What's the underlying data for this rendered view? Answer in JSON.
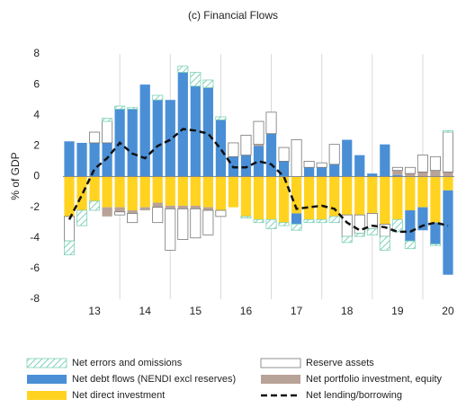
{
  "chart_data": {
    "type": "bar",
    "title": "(c) Financial Flows",
    "y_label": "% of GDP",
    "categories": [
      null,
      null,
      "13",
      null,
      null,
      null,
      "14",
      null,
      null,
      null,
      "15",
      null,
      null,
      null,
      "16",
      null,
      null,
      null,
      "17",
      null,
      null,
      null,
      "18",
      null,
      null,
      null,
      "19",
      null,
      null,
      null,
      "20"
    ],
    "ylim": [
      -8,
      8
    ],
    "yticks": [
      -8,
      -6,
      -4,
      -2,
      0,
      2,
      4,
      6,
      8
    ],
    "grid": false,
    "year_dividers": true,
    "series": [
      {
        "name": "Net direct investment",
        "color": "#ffd320",
        "values": [
          -2.6,
          -2.2,
          -1.6,
          -2.0,
          -2.0,
          -2.2,
          -2.0,
          -1.7,
          -1.9,
          -1.9,
          -1.9,
          -2.0,
          -2.2,
          -2.0,
          -2.6,
          -2.8,
          -2.8,
          -3.0,
          -2.4,
          -2.8,
          -2.8,
          -2.6,
          -2.5,
          -2.5,
          -2.4,
          -3.1,
          -2.8,
          -2.2,
          -2.0,
          -3.0,
          -0.9
        ]
      },
      {
        "name": "Net debt flows (NENDI excl reserves)",
        "color": "#4a8fd6",
        "values": [
          2.3,
          2.2,
          2.2,
          2.2,
          4.4,
          4.4,
          6.0,
          5.0,
          5.0,
          6.8,
          5.9,
          5.8,
          3.7,
          1.3,
          1.4,
          2.0,
          2.8,
          1.0,
          -0.7,
          0.6,
          0.6,
          0.8,
          2.4,
          1.4,
          0.2,
          2.1,
          0.1,
          -2.0,
          -1.5,
          -1.4,
          -5.5
        ]
      },
      {
        "name": "Net portfolio investment, equity",
        "color": "#b8a398",
        "values": [
          0,
          0,
          0,
          -0.6,
          -0.3,
          -0.2,
          -0.2,
          -0.3,
          -0.2,
          -0.2,
          -0.2,
          -0.2,
          0,
          0,
          0,
          0.1,
          0,
          0,
          0,
          0,
          0,
          0,
          0,
          0,
          0,
          0,
          0.3,
          0.2,
          0.3,
          0.4,
          0.3
        ]
      },
      {
        "name": "Reserve assets",
        "color": "#ffffff",
        "values": [
          -1.6,
          0,
          0.7,
          1.4,
          -0.2,
          -0.6,
          0,
          -1.0,
          -2.7,
          -2.0,
          -1.9,
          -1.6,
          -0.4,
          0.9,
          1.3,
          1.5,
          1.4,
          0.9,
          2.4,
          0.4,
          0.3,
          1.3,
          -1.4,
          -1.2,
          -1.0,
          -0.8,
          0.2,
          0.4,
          1.1,
          0.9,
          2.6
        ]
      },
      {
        "name": "Net errors and omissions",
        "color": "#7fd1b9",
        "hatched": true,
        "values": [
          -0.9,
          -1.0,
          -0.6,
          0.2,
          0.2,
          0.1,
          0,
          0.3,
          0,
          0.4,
          0.9,
          0.5,
          0.2,
          0,
          -0.1,
          -0.2,
          -0.6,
          -0.2,
          -0.4,
          -0.2,
          -0.2,
          -0.4,
          -0.4,
          -0.2,
          -0.4,
          -0.9,
          -0.8,
          -0.5,
          0,
          -0.1,
          0.1
        ]
      },
      {
        "name": "Net lending/borrowing",
        "type": "line",
        "color": "#111111",
        "values": [
          -2.8,
          -1.2,
          0.5,
          1.2,
          2.2,
          1.5,
          1.2,
          2.0,
          2.4,
          3.1,
          3.0,
          2.8,
          1.8,
          0.6,
          0.6,
          1.0,
          0.8,
          0.0,
          -2.1,
          -2.0,
          -1.9,
          -2.1,
          -3.0,
          -3.5,
          -3.2,
          -3.3,
          -3.6,
          -3.6,
          -3.2,
          -3.0,
          -3.2
        ]
      }
    ],
    "legend_order": [
      4,
      3,
      1,
      2,
      0,
      5
    ]
  }
}
